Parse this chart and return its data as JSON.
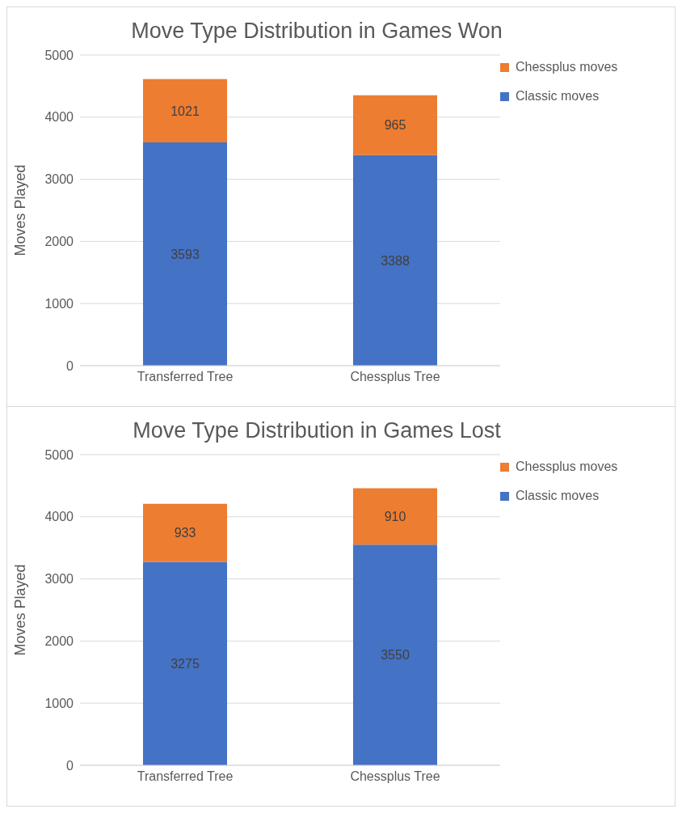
{
  "chart_data": [
    {
      "type": "bar",
      "title": "Move Type Distribution in Games Won",
      "ylabel": "Moves Played",
      "categories": [
        "Transferred Tree",
        "Chessplus Tree"
      ],
      "stacked": true,
      "data_labels": true,
      "grid": "y",
      "legend": "right",
      "ylim": [
        0,
        5000
      ],
      "yticks": [
        0,
        1000,
        2000,
        3000,
        4000,
        5000
      ],
      "series": [
        {
          "name": "Classic moves",
          "color": "#4472c4",
          "values": [
            3593,
            3388
          ]
        },
        {
          "name": "Chessplus moves",
          "color": "#ed7d31",
          "values": [
            1021,
            965
          ]
        }
      ]
    },
    {
      "type": "bar",
      "title": "Move Type Distribution in Games Lost",
      "ylabel": "Moves Played",
      "categories": [
        "Transferred Tree",
        "Chessplus Tree"
      ],
      "stacked": true,
      "data_labels": true,
      "grid": "y",
      "legend": "right",
      "ylim": [
        0,
        5000
      ],
      "yticks": [
        0,
        1000,
        2000,
        3000,
        4000,
        5000
      ],
      "series": [
        {
          "name": "Classic moves",
          "color": "#4472c4",
          "values": [
            3275,
            3550
          ]
        },
        {
          "name": "Chessplus moves",
          "color": "#ed7d31",
          "values": [
            933,
            910
          ]
        }
      ]
    }
  ]
}
